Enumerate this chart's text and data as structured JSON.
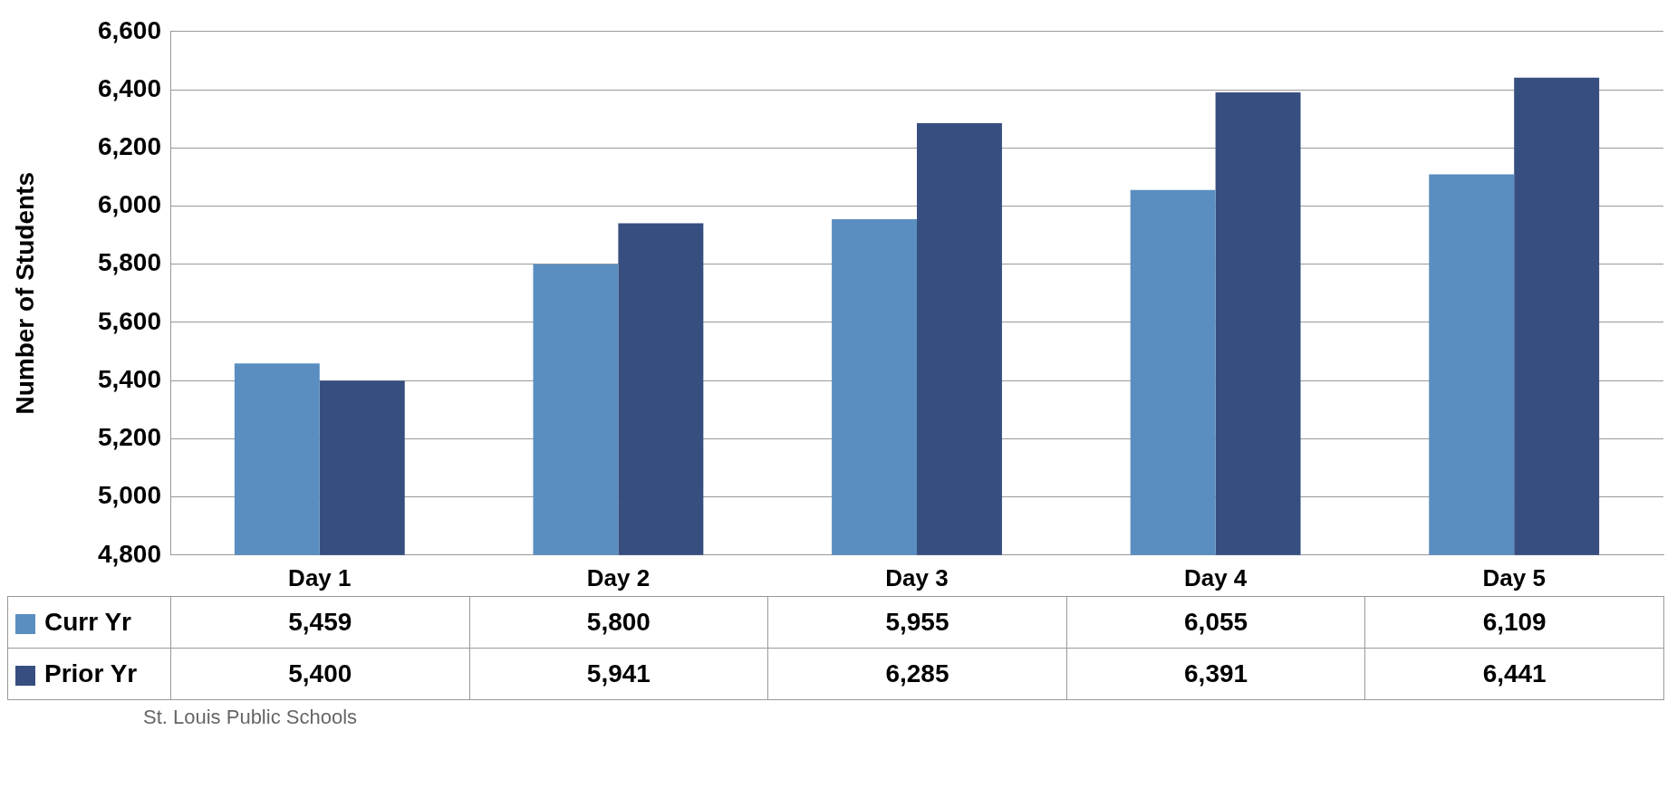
{
  "chart_data": {
    "type": "bar",
    "ylabel": "Number of Students",
    "categories": [
      "Day 1",
      "Day 2",
      "Day 3",
      "Day 4",
      "Day 5"
    ],
    "series": [
      {
        "name": "Curr Yr",
        "color": "#5a8ec0",
        "values": [
          5459,
          5800,
          5955,
          6055,
          6109
        ],
        "value_labels": [
          "5,459",
          "5,800",
          "5,955",
          "6,055",
          "6,109"
        ]
      },
      {
        "name": "Prior Yr",
        "color": "#374e80",
        "values": [
          5400,
          5941,
          6285,
          6391,
          6441
        ],
        "value_labels": [
          "5,400",
          "5,941",
          "6,285",
          "6,391",
          "6,441"
        ]
      }
    ],
    "ylim": [
      4800,
      6600
    ],
    "yticks": [
      {
        "value": 4800,
        "label": "4,800"
      },
      {
        "value": 5000,
        "label": "5,000"
      },
      {
        "value": 5200,
        "label": "5,200"
      },
      {
        "value": 5400,
        "label": "5,400"
      },
      {
        "value": 5600,
        "label": "5,600"
      },
      {
        "value": 5800,
        "label": "5,800"
      },
      {
        "value": 6000,
        "label": "6,000"
      },
      {
        "value": 6200,
        "label": "6,200"
      },
      {
        "value": 6400,
        "label": "6,400"
      },
      {
        "value": 6600,
        "label": "6,600"
      }
    ],
    "grid": "y",
    "legend": "bottom left",
    "annotations": [
      "St. Louis Public Schools"
    ]
  }
}
